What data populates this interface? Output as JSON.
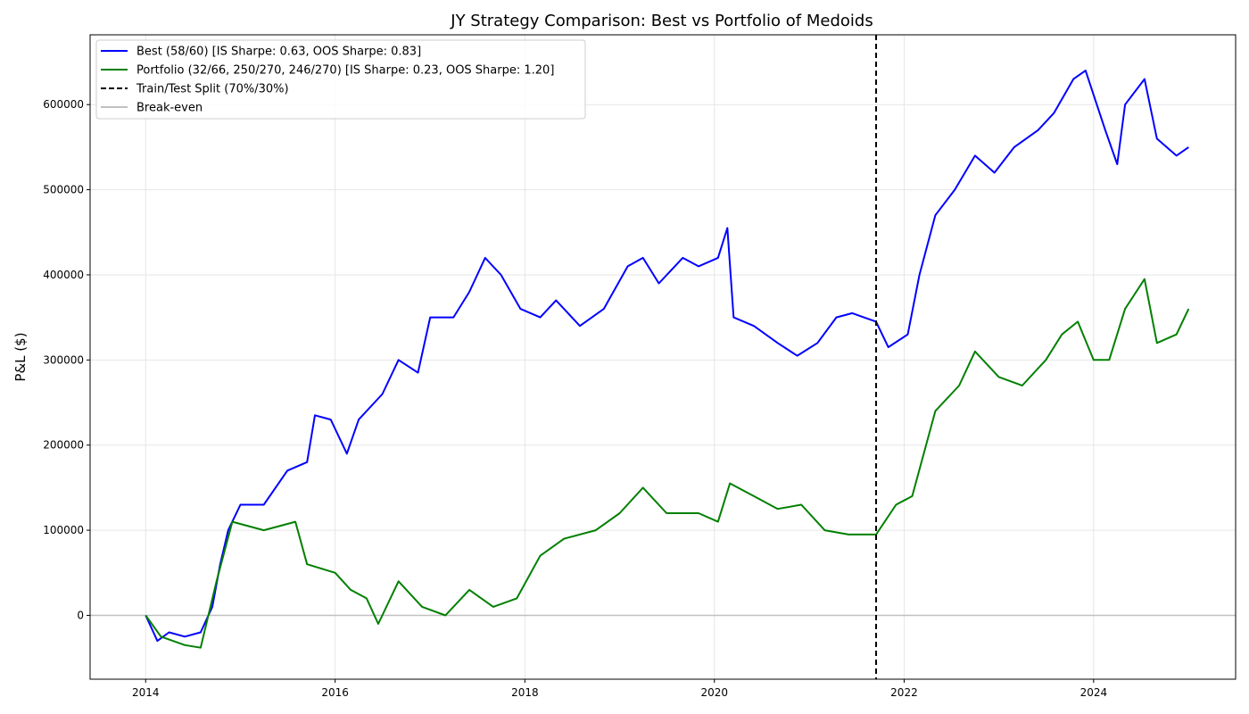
{
  "chart_data": {
    "type": "line",
    "title": "JY Strategy Comparison: Best vs Portfolio of Medoids",
    "ylabel": "P&L ($)",
    "xlabel": "",
    "xlim": [
      "2013-06-01",
      "2025-07-01"
    ],
    "ylim": [
      -75000,
      682000
    ],
    "x_ticks": [
      {
        "date": "2014-01-01",
        "label": "2014"
      },
      {
        "date": "2016-01-01",
        "label": "2016"
      },
      {
        "date": "2018-01-01",
        "label": "2018"
      },
      {
        "date": "2020-01-01",
        "label": "2020"
      },
      {
        "date": "2022-01-01",
        "label": "2022"
      },
      {
        "date": "2024-01-01",
        "label": "2024"
      }
    ],
    "y_ticks": [
      {
        "value": 0,
        "label": "0"
      },
      {
        "value": 100000,
        "label": "100000"
      },
      {
        "value": 200000,
        "label": "200000"
      },
      {
        "value": 300000,
        "label": "300000"
      },
      {
        "value": 400000,
        "label": "400000"
      },
      {
        "value": 500000,
        "label": "500000"
      },
      {
        "value": 600000,
        "label": "600000"
      }
    ],
    "grid": true,
    "legend_placement": "top-left",
    "legend": [
      {
        "label": "Best (58/60) [IS Sharpe: 0.63, OOS Sharpe: 0.83]",
        "color": "#0000ff",
        "style": "solid"
      },
      {
        "label": "Portfolio (32/66, 250/270, 246/270) [IS Sharpe: 0.23, OOS Sharpe: 1.20]",
        "color": "#008000",
        "style": "solid"
      },
      {
        "label": "Train/Test Split (70%/30%)",
        "color": "#000000",
        "style": "dashed"
      },
      {
        "label": "Break-even",
        "color": "#c0c0c0",
        "style": "solid"
      }
    ],
    "split_date": "2021-09-15",
    "breakeven_value": 0,
    "series": [
      {
        "name": "Best (58/60) [IS Sharpe: 0.63, OOS Sharpe: 0.83]",
        "color": "#0000ff",
        "points": [
          [
            "2014-01-01",
            0
          ],
          [
            "2014-02-15",
            -30000
          ],
          [
            "2014-04-01",
            -20000
          ],
          [
            "2014-06-01",
            -25000
          ],
          [
            "2014-08-01",
            -20000
          ],
          [
            "2014-09-15",
            10000
          ],
          [
            "2014-10-15",
            60000
          ],
          [
            "2014-11-15",
            100000
          ],
          [
            "2015-01-01",
            130000
          ],
          [
            "2015-04-01",
            130000
          ],
          [
            "2015-07-01",
            170000
          ],
          [
            "2015-09-15",
            180000
          ],
          [
            "2015-10-15",
            235000
          ],
          [
            "2015-12-15",
            230000
          ],
          [
            "2016-02-15",
            190000
          ],
          [
            "2016-04-01",
            230000
          ],
          [
            "2016-07-01",
            260000
          ],
          [
            "2016-09-01",
            300000
          ],
          [
            "2016-11-15",
            285000
          ],
          [
            "2017-01-01",
            350000
          ],
          [
            "2017-04-01",
            350000
          ],
          [
            "2017-06-01",
            380000
          ],
          [
            "2017-08-01",
            420000
          ],
          [
            "2017-10-01",
            400000
          ],
          [
            "2017-12-15",
            360000
          ],
          [
            "2018-03-01",
            350000
          ],
          [
            "2018-05-01",
            370000
          ],
          [
            "2018-08-01",
            340000
          ],
          [
            "2018-11-01",
            360000
          ],
          [
            "2019-02-01",
            410000
          ],
          [
            "2019-04-01",
            420000
          ],
          [
            "2019-06-01",
            390000
          ],
          [
            "2019-09-01",
            420000
          ],
          [
            "2019-11-01",
            410000
          ],
          [
            "2020-01-15",
            420000
          ],
          [
            "2020-02-20",
            455000
          ],
          [
            "2020-03-15",
            350000
          ],
          [
            "2020-06-01",
            340000
          ],
          [
            "2020-09-01",
            320000
          ],
          [
            "2020-11-15",
            305000
          ],
          [
            "2021-02-01",
            320000
          ],
          [
            "2021-04-15",
            350000
          ],
          [
            "2021-06-15",
            355000
          ],
          [
            "2021-09-15",
            345000
          ],
          [
            "2021-11-01",
            315000
          ],
          [
            "2022-01-15",
            330000
          ],
          [
            "2022-03-01",
            400000
          ],
          [
            "2022-05-01",
            470000
          ],
          [
            "2022-07-15",
            500000
          ],
          [
            "2022-10-01",
            540000
          ],
          [
            "2022-12-15",
            520000
          ],
          [
            "2023-03-01",
            550000
          ],
          [
            "2023-06-01",
            570000
          ],
          [
            "2023-08-01",
            590000
          ],
          [
            "2023-10-15",
            630000
          ],
          [
            "2023-12-01",
            640000
          ],
          [
            "2024-02-15",
            570000
          ],
          [
            "2024-04-01",
            530000
          ],
          [
            "2024-05-01",
            600000
          ],
          [
            "2024-07-15",
            630000
          ],
          [
            "2024-09-01",
            560000
          ],
          [
            "2024-11-15",
            540000
          ],
          [
            "2025-01-01",
            550000
          ]
        ]
      },
      {
        "name": "Portfolio (32/66, 250/270, 246/270) [IS Sharpe: 0.23, OOS Sharpe: 1.20]",
        "color": "#008000",
        "points": [
          [
            "2014-01-01",
            0
          ],
          [
            "2014-03-01",
            -25000
          ],
          [
            "2014-06-01",
            -35000
          ],
          [
            "2014-08-01",
            -38000
          ],
          [
            "2014-10-01",
            40000
          ],
          [
            "2014-12-01",
            110000
          ],
          [
            "2015-04-01",
            100000
          ],
          [
            "2015-08-01",
            110000
          ],
          [
            "2015-09-15",
            60000
          ],
          [
            "2016-01-01",
            50000
          ],
          [
            "2016-03-01",
            30000
          ],
          [
            "2016-05-01",
            20000
          ],
          [
            "2016-06-15",
            -10000
          ],
          [
            "2016-09-01",
            40000
          ],
          [
            "2016-12-01",
            10000
          ],
          [
            "2017-03-01",
            0
          ],
          [
            "2017-06-01",
            30000
          ],
          [
            "2017-09-01",
            10000
          ],
          [
            "2017-12-01",
            20000
          ],
          [
            "2018-03-01",
            70000
          ],
          [
            "2018-06-01",
            90000
          ],
          [
            "2018-10-01",
            100000
          ],
          [
            "2019-01-01",
            120000
          ],
          [
            "2019-04-01",
            150000
          ],
          [
            "2019-07-01",
            120000
          ],
          [
            "2019-11-01",
            120000
          ],
          [
            "2020-01-15",
            110000
          ],
          [
            "2020-03-01",
            155000
          ],
          [
            "2020-06-01",
            140000
          ],
          [
            "2020-09-01",
            125000
          ],
          [
            "2020-12-01",
            130000
          ],
          [
            "2021-03-01",
            100000
          ],
          [
            "2021-06-01",
            95000
          ],
          [
            "2021-09-15",
            95000
          ],
          [
            "2021-12-01",
            130000
          ],
          [
            "2022-02-01",
            140000
          ],
          [
            "2022-05-01",
            240000
          ],
          [
            "2022-08-01",
            270000
          ],
          [
            "2022-10-01",
            310000
          ],
          [
            "2023-01-01",
            280000
          ],
          [
            "2023-04-01",
            270000
          ],
          [
            "2023-07-01",
            300000
          ],
          [
            "2023-09-01",
            330000
          ],
          [
            "2023-11-01",
            345000
          ],
          [
            "2024-01-01",
            300000
          ],
          [
            "2024-03-01",
            300000
          ],
          [
            "2024-05-01",
            360000
          ],
          [
            "2024-07-15",
            395000
          ],
          [
            "2024-09-01",
            320000
          ],
          [
            "2024-11-15",
            330000
          ],
          [
            "2025-01-01",
            360000
          ]
        ]
      }
    ]
  }
}
